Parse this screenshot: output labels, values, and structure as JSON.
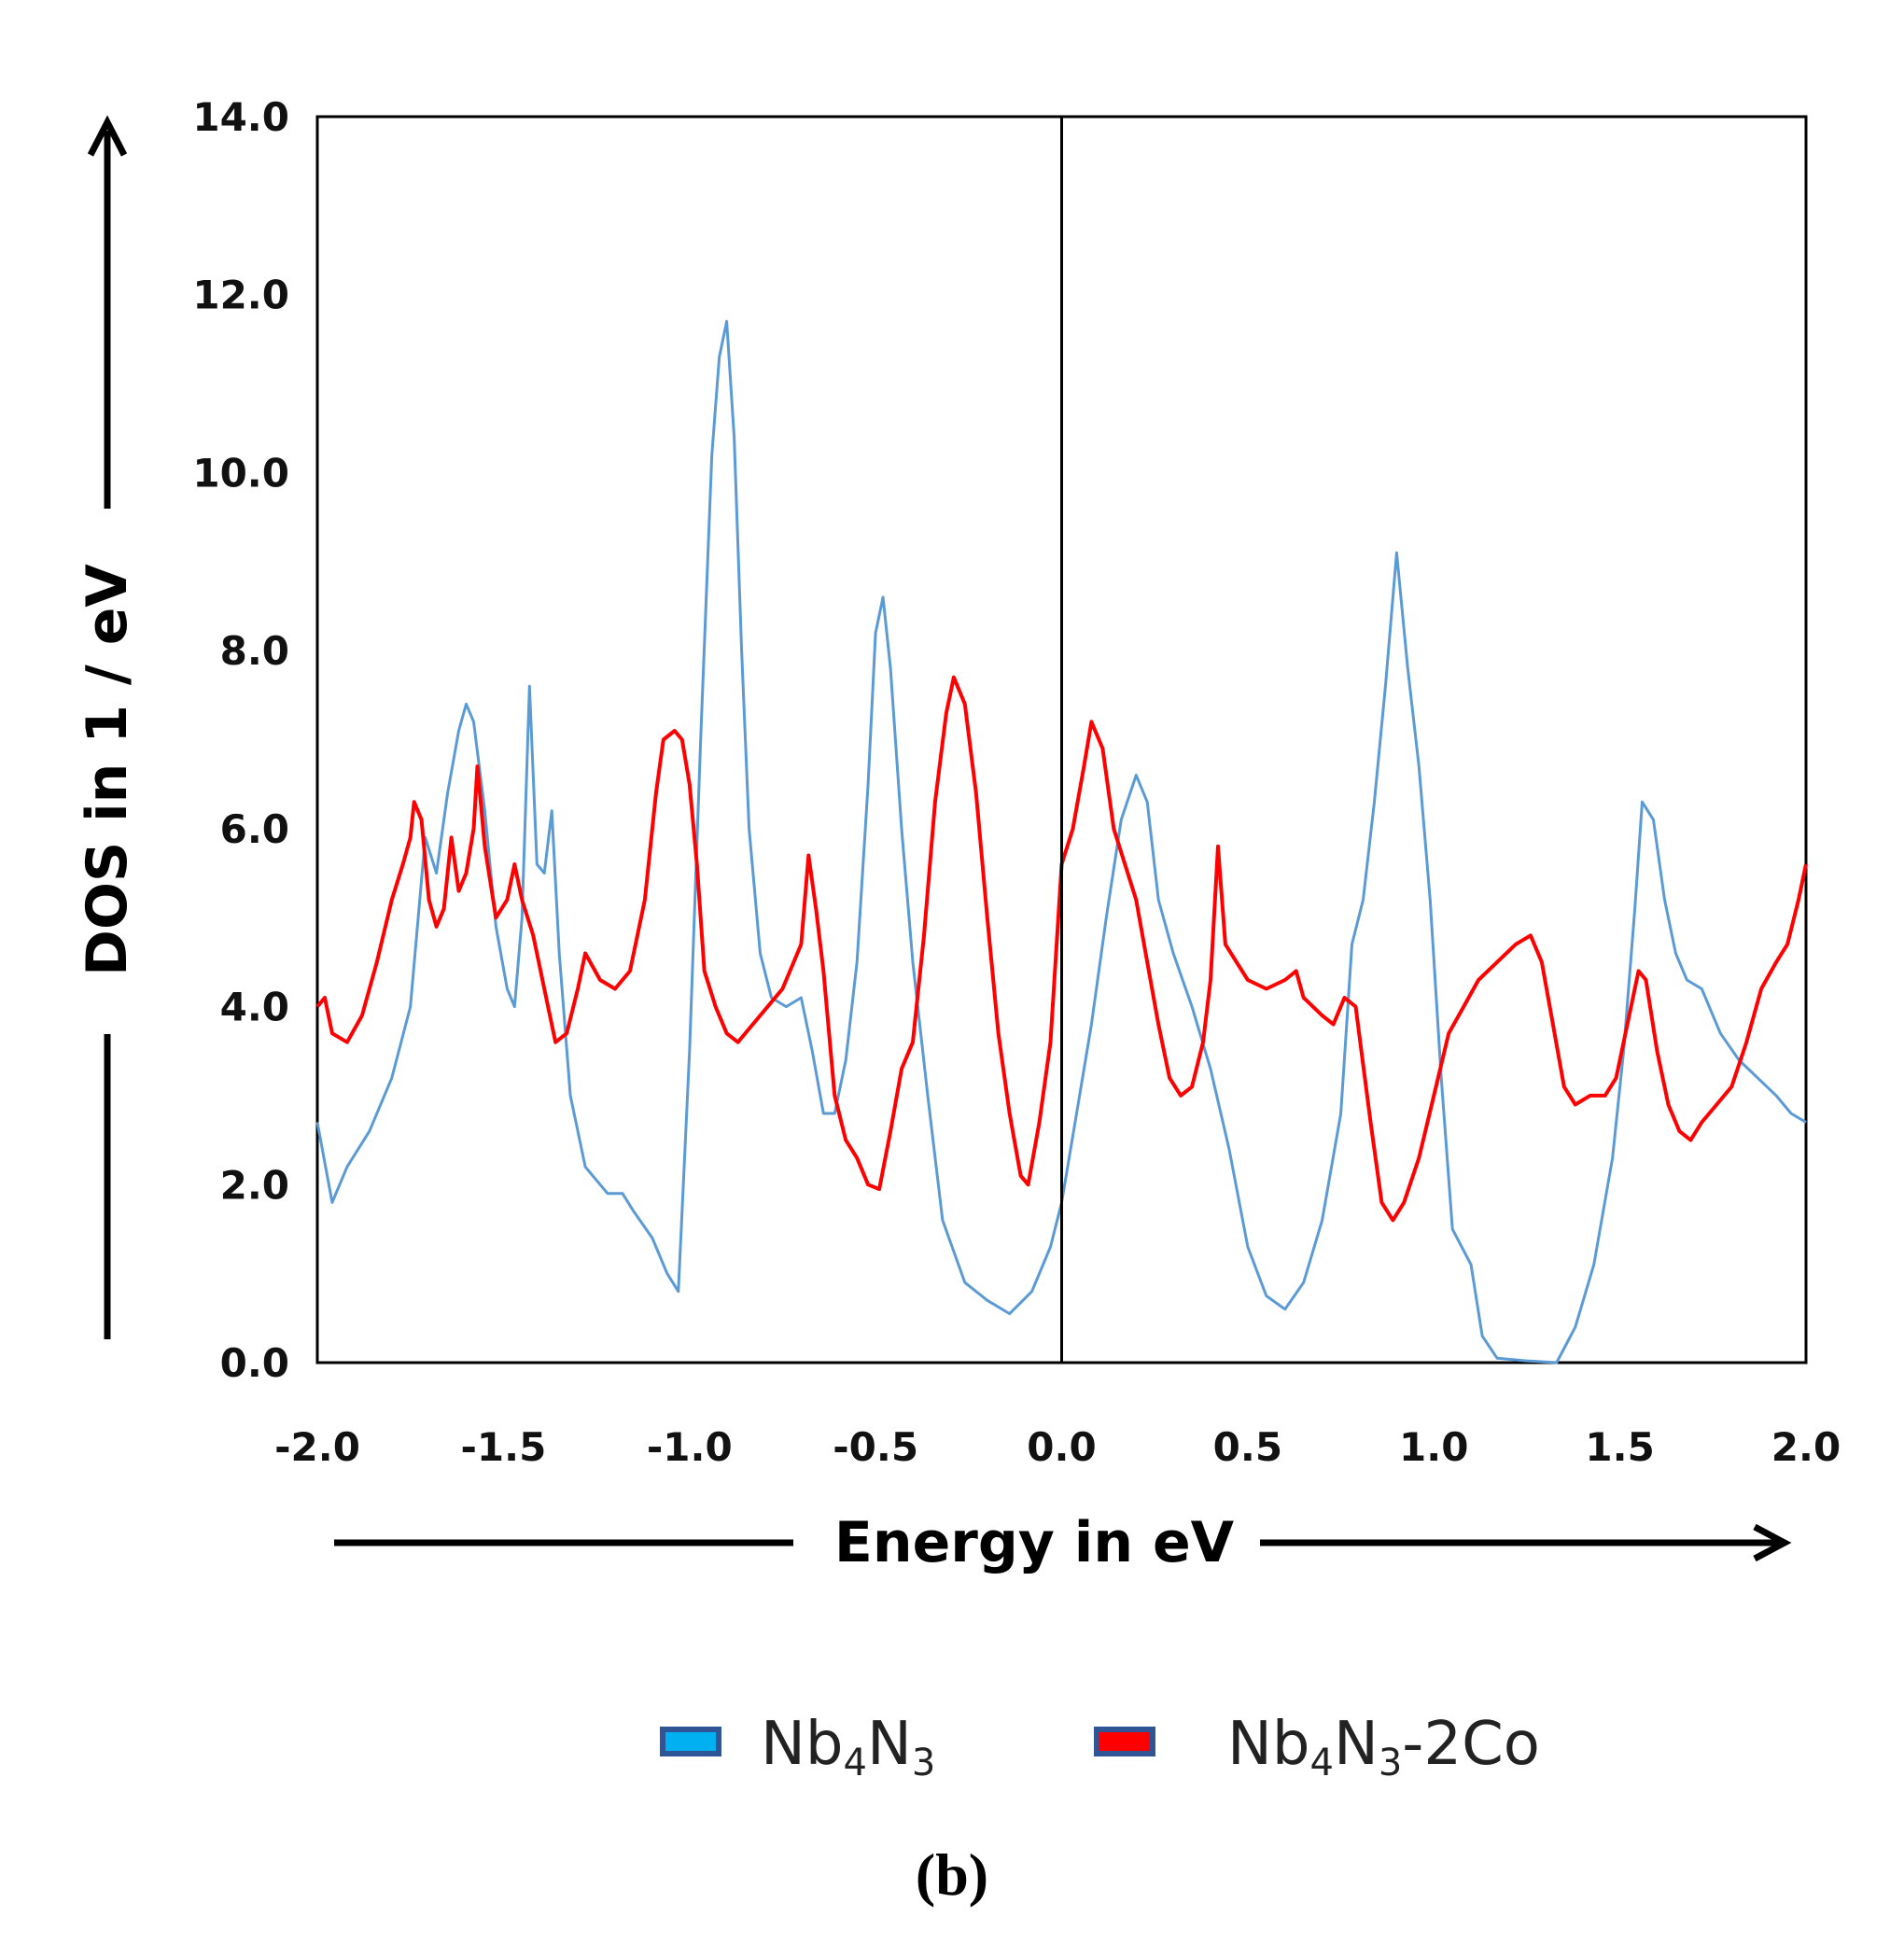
{
  "chart_data": {
    "type": "line",
    "xlabel": "Energy in eV",
    "ylabel": "DOS in 1 / eV",
    "xlim": [
      -2.0,
      2.0
    ],
    "ylim": [
      0.0,
      14.0
    ],
    "x_ticks": [
      -2.0,
      -1.5,
      -1.0,
      -0.5,
      0.0,
      0.5,
      1.0,
      1.5,
      2.0
    ],
    "x_tick_labels": [
      "-2.0",
      "-1.5",
      "-1.0",
      "-0.5",
      "0.0",
      "0.5",
      "1.0",
      "1.5",
      "2.0"
    ],
    "y_ticks": [
      0,
      2,
      4,
      6,
      8,
      10,
      12,
      14
    ],
    "y_tick_labels": [
      "0.0",
      "2.0",
      "4.0",
      "6.0",
      "8.0",
      "10.0",
      "12.0",
      "14.0"
    ],
    "reference_line_x": 0.0,
    "grid": false,
    "legend_position": "bottom",
    "panel_label": "(b)",
    "series": [
      {
        "name": "Nb4N3",
        "label_parts": [
          [
            "Nb",
            ""
          ],
          [
            "4",
            "sub"
          ],
          [
            "N",
            ""
          ],
          [
            "3",
            "sub"
          ]
        ],
        "color": "#5b9bd5",
        "legend_fill": "#00b0f0",
        "points": [
          [
            -2.0,
            2.7
          ],
          [
            -1.96,
            1.8
          ],
          [
            -1.92,
            2.2
          ],
          [
            -1.86,
            2.6
          ],
          [
            -1.8,
            3.2
          ],
          [
            -1.75,
            4.0
          ],
          [
            -1.71,
            5.9
          ],
          [
            -1.68,
            5.5
          ],
          [
            -1.65,
            6.4
          ],
          [
            -1.62,
            7.1
          ],
          [
            -1.6,
            7.4
          ],
          [
            -1.58,
            7.2
          ],
          [
            -1.55,
            6.2
          ],
          [
            -1.52,
            4.9
          ],
          [
            -1.49,
            4.2
          ],
          [
            -1.47,
            4.0
          ],
          [
            -1.45,
            5.0
          ],
          [
            -1.43,
            7.6
          ],
          [
            -1.41,
            5.6
          ],
          [
            -1.39,
            5.5
          ],
          [
            -1.37,
            6.2
          ],
          [
            -1.35,
            4.6
          ],
          [
            -1.32,
            3.0
          ],
          [
            -1.28,
            2.2
          ],
          [
            -1.22,
            1.9
          ],
          [
            -1.18,
            1.9
          ],
          [
            -1.15,
            1.7
          ],
          [
            -1.1,
            1.4
          ],
          [
            -1.06,
            1.0
          ],
          [
            -1.03,
            0.8
          ],
          [
            -1.0,
            3.5
          ],
          [
            -0.97,
            7.0
          ],
          [
            -0.94,
            10.2
          ],
          [
            -0.92,
            11.3
          ],
          [
            -0.9,
            11.7
          ],
          [
            -0.88,
            10.4
          ],
          [
            -0.86,
            8.0
          ],
          [
            -0.84,
            6.0
          ],
          [
            -0.81,
            4.6
          ],
          [
            -0.78,
            4.1
          ],
          [
            -0.74,
            4.0
          ],
          [
            -0.7,
            4.1
          ],
          [
            -0.67,
            3.5
          ],
          [
            -0.64,
            2.8
          ],
          [
            -0.61,
            2.8
          ],
          [
            -0.58,
            3.4
          ],
          [
            -0.55,
            4.5
          ],
          [
            -0.52,
            6.5
          ],
          [
            -0.5,
            8.2
          ],
          [
            -0.48,
            8.6
          ],
          [
            -0.46,
            7.8
          ],
          [
            -0.43,
            6.0
          ],
          [
            -0.4,
            4.5
          ],
          [
            -0.36,
            3.0
          ],
          [
            -0.32,
            1.6
          ],
          [
            -0.26,
            0.9
          ],
          [
            -0.2,
            0.7
          ],
          [
            -0.14,
            0.55
          ],
          [
            -0.08,
            0.8
          ],
          [
            -0.03,
            1.3
          ],
          [
            0.0,
            1.8
          ],
          [
            0.04,
            2.8
          ],
          [
            0.08,
            3.8
          ],
          [
            0.12,
            5.0
          ],
          [
            0.16,
            6.1
          ],
          [
            0.2,
            6.6
          ],
          [
            0.23,
            6.3
          ],
          [
            0.26,
            5.2
          ],
          [
            0.3,
            4.6
          ],
          [
            0.35,
            4.0
          ],
          [
            0.4,
            3.3
          ],
          [
            0.45,
            2.4
          ],
          [
            0.5,
            1.3
          ],
          [
            0.55,
            0.75
          ],
          [
            0.6,
            0.6
          ],
          [
            0.65,
            0.9
          ],
          [
            0.7,
            1.6
          ],
          [
            0.75,
            2.8
          ],
          [
            0.78,
            4.7
          ],
          [
            0.81,
            5.2
          ],
          [
            0.84,
            6.3
          ],
          [
            0.87,
            7.6
          ],
          [
            0.9,
            9.1
          ],
          [
            0.93,
            7.8
          ],
          [
            0.96,
            6.7
          ],
          [
            0.99,
            5.2
          ],
          [
            1.02,
            3.2
          ],
          [
            1.05,
            1.5
          ],
          [
            1.1,
            1.1
          ],
          [
            1.13,
            0.3
          ],
          [
            1.17,
            0.05
          ],
          [
            1.25,
            0.02
          ],
          [
            1.33,
            0.0
          ],
          [
            1.38,
            0.4
          ],
          [
            1.43,
            1.1
          ],
          [
            1.48,
            2.3
          ],
          [
            1.51,
            3.5
          ],
          [
            1.54,
            5.1
          ],
          [
            1.56,
            6.3
          ],
          [
            1.59,
            6.1
          ],
          [
            1.62,
            5.2
          ],
          [
            1.65,
            4.6
          ],
          [
            1.68,
            4.3
          ],
          [
            1.72,
            4.2
          ],
          [
            1.77,
            3.7
          ],
          [
            1.82,
            3.4
          ],
          [
            1.87,
            3.2
          ],
          [
            1.92,
            3.0
          ],
          [
            1.96,
            2.8
          ],
          [
            2.0,
            2.7
          ]
        ]
      },
      {
        "name": "Nb4N3-2Co",
        "label_parts": [
          [
            "Nb",
            ""
          ],
          [
            "4",
            "sub"
          ],
          [
            "N",
            ""
          ],
          [
            "3",
            "sub"
          ],
          [
            "-2Co",
            ""
          ]
        ],
        "color": "#ff0000",
        "legend_fill": "#ff0000",
        "points": [
          [
            -2.0,
            4.0
          ],
          [
            -1.98,
            4.1
          ],
          [
            -1.96,
            3.7
          ],
          [
            -1.92,
            3.6
          ],
          [
            -1.88,
            3.9
          ],
          [
            -1.84,
            4.5
          ],
          [
            -1.8,
            5.2
          ],
          [
            -1.77,
            5.6
          ],
          [
            -1.75,
            5.9
          ],
          [
            -1.74,
            6.3
          ],
          [
            -1.72,
            6.1
          ],
          [
            -1.7,
            5.2
          ],
          [
            -1.68,
            4.9
          ],
          [
            -1.66,
            5.1
          ],
          [
            -1.64,
            5.9
          ],
          [
            -1.62,
            5.3
          ],
          [
            -1.6,
            5.5
          ],
          [
            -1.58,
            6.0
          ],
          [
            -1.57,
            6.7
          ],
          [
            -1.55,
            5.8
          ],
          [
            -1.52,
            5.0
          ],
          [
            -1.49,
            5.2
          ],
          [
            -1.47,
            5.6
          ],
          [
            -1.45,
            5.2
          ],
          [
            -1.42,
            4.8
          ],
          [
            -1.39,
            4.2
          ],
          [
            -1.36,
            3.6
          ],
          [
            -1.33,
            3.7
          ],
          [
            -1.3,
            4.2
          ],
          [
            -1.28,
            4.6
          ],
          [
            -1.24,
            4.3
          ],
          [
            -1.2,
            4.2
          ],
          [
            -1.16,
            4.4
          ],
          [
            -1.12,
            5.2
          ],
          [
            -1.09,
            6.4
          ],
          [
            -1.07,
            7.0
          ],
          [
            -1.04,
            7.1
          ],
          [
            -1.02,
            7.0
          ],
          [
            -1.0,
            6.5
          ],
          [
            -0.98,
            5.6
          ],
          [
            -0.96,
            4.4
          ],
          [
            -0.93,
            4.0
          ],
          [
            -0.9,
            3.7
          ],
          [
            -0.87,
            3.6
          ],
          [
            -0.83,
            3.8
          ],
          [
            -0.79,
            4.0
          ],
          [
            -0.75,
            4.2
          ],
          [
            -0.72,
            4.5
          ],
          [
            -0.7,
            4.7
          ],
          [
            -0.68,
            5.7
          ],
          [
            -0.66,
            5.1
          ],
          [
            -0.64,
            4.4
          ],
          [
            -0.61,
            3.0
          ],
          [
            -0.58,
            2.5
          ],
          [
            -0.55,
            2.3
          ],
          [
            -0.52,
            2.0
          ],
          [
            -0.49,
            1.95
          ],
          [
            -0.46,
            2.6
          ],
          [
            -0.43,
            3.3
          ],
          [
            -0.4,
            3.6
          ],
          [
            -0.37,
            4.8
          ],
          [
            -0.34,
            6.3
          ],
          [
            -0.31,
            7.3
          ],
          [
            -0.29,
            7.7
          ],
          [
            -0.26,
            7.4
          ],
          [
            -0.23,
            6.4
          ],
          [
            -0.2,
            5.0
          ],
          [
            -0.17,
            3.7
          ],
          [
            -0.14,
            2.8
          ],
          [
            -0.11,
            2.1
          ],
          [
            -0.09,
            2.0
          ],
          [
            -0.06,
            2.7
          ],
          [
            -0.03,
            3.6
          ],
          [
            0.0,
            5.6
          ],
          [
            0.03,
            6.0
          ],
          [
            0.06,
            6.7
          ],
          [
            0.08,
            7.2
          ],
          [
            0.11,
            6.9
          ],
          [
            0.14,
            6.0
          ],
          [
            0.17,
            5.6
          ],
          [
            0.2,
            5.2
          ],
          [
            0.23,
            4.5
          ],
          [
            0.26,
            3.8
          ],
          [
            0.29,
            3.2
          ],
          [
            0.32,
            3.0
          ],
          [
            0.35,
            3.1
          ],
          [
            0.38,
            3.6
          ],
          [
            0.4,
            4.3
          ],
          [
            0.42,
            5.8
          ],
          [
            0.44,
            4.7
          ],
          [
            0.47,
            4.5
          ],
          [
            0.5,
            4.3
          ],
          [
            0.55,
            4.2
          ],
          [
            0.6,
            4.3
          ],
          [
            0.63,
            4.4
          ],
          [
            0.65,
            4.1
          ],
          [
            0.7,
            3.9
          ],
          [
            0.73,
            3.8
          ],
          [
            0.76,
            4.1
          ],
          [
            0.79,
            4.0
          ],
          [
            0.83,
            2.7
          ],
          [
            0.86,
            1.8
          ],
          [
            0.89,
            1.6
          ],
          [
            0.92,
            1.8
          ],
          [
            0.96,
            2.3
          ],
          [
            1.0,
            3.0
          ],
          [
            1.04,
            3.7
          ],
          [
            1.08,
            4.0
          ],
          [
            1.12,
            4.3
          ],
          [
            1.17,
            4.5
          ],
          [
            1.22,
            4.7
          ],
          [
            1.26,
            4.8
          ],
          [
            1.29,
            4.5
          ],
          [
            1.32,
            3.8
          ],
          [
            1.35,
            3.1
          ],
          [
            1.38,
            2.9
          ],
          [
            1.42,
            3.0
          ],
          [
            1.46,
            3.0
          ],
          [
            1.49,
            3.2
          ],
          [
            1.52,
            3.8
          ],
          [
            1.55,
            4.4
          ],
          [
            1.57,
            4.3
          ],
          [
            1.6,
            3.5
          ],
          [
            1.63,
            2.9
          ],
          [
            1.66,
            2.6
          ],
          [
            1.69,
            2.5
          ],
          [
            1.72,
            2.7
          ],
          [
            1.76,
            2.9
          ],
          [
            1.8,
            3.1
          ],
          [
            1.84,
            3.6
          ],
          [
            1.88,
            4.2
          ],
          [
            1.92,
            4.5
          ],
          [
            1.95,
            4.7
          ],
          [
            1.98,
            5.2
          ],
          [
            2.0,
            5.6
          ]
        ]
      }
    ]
  }
}
